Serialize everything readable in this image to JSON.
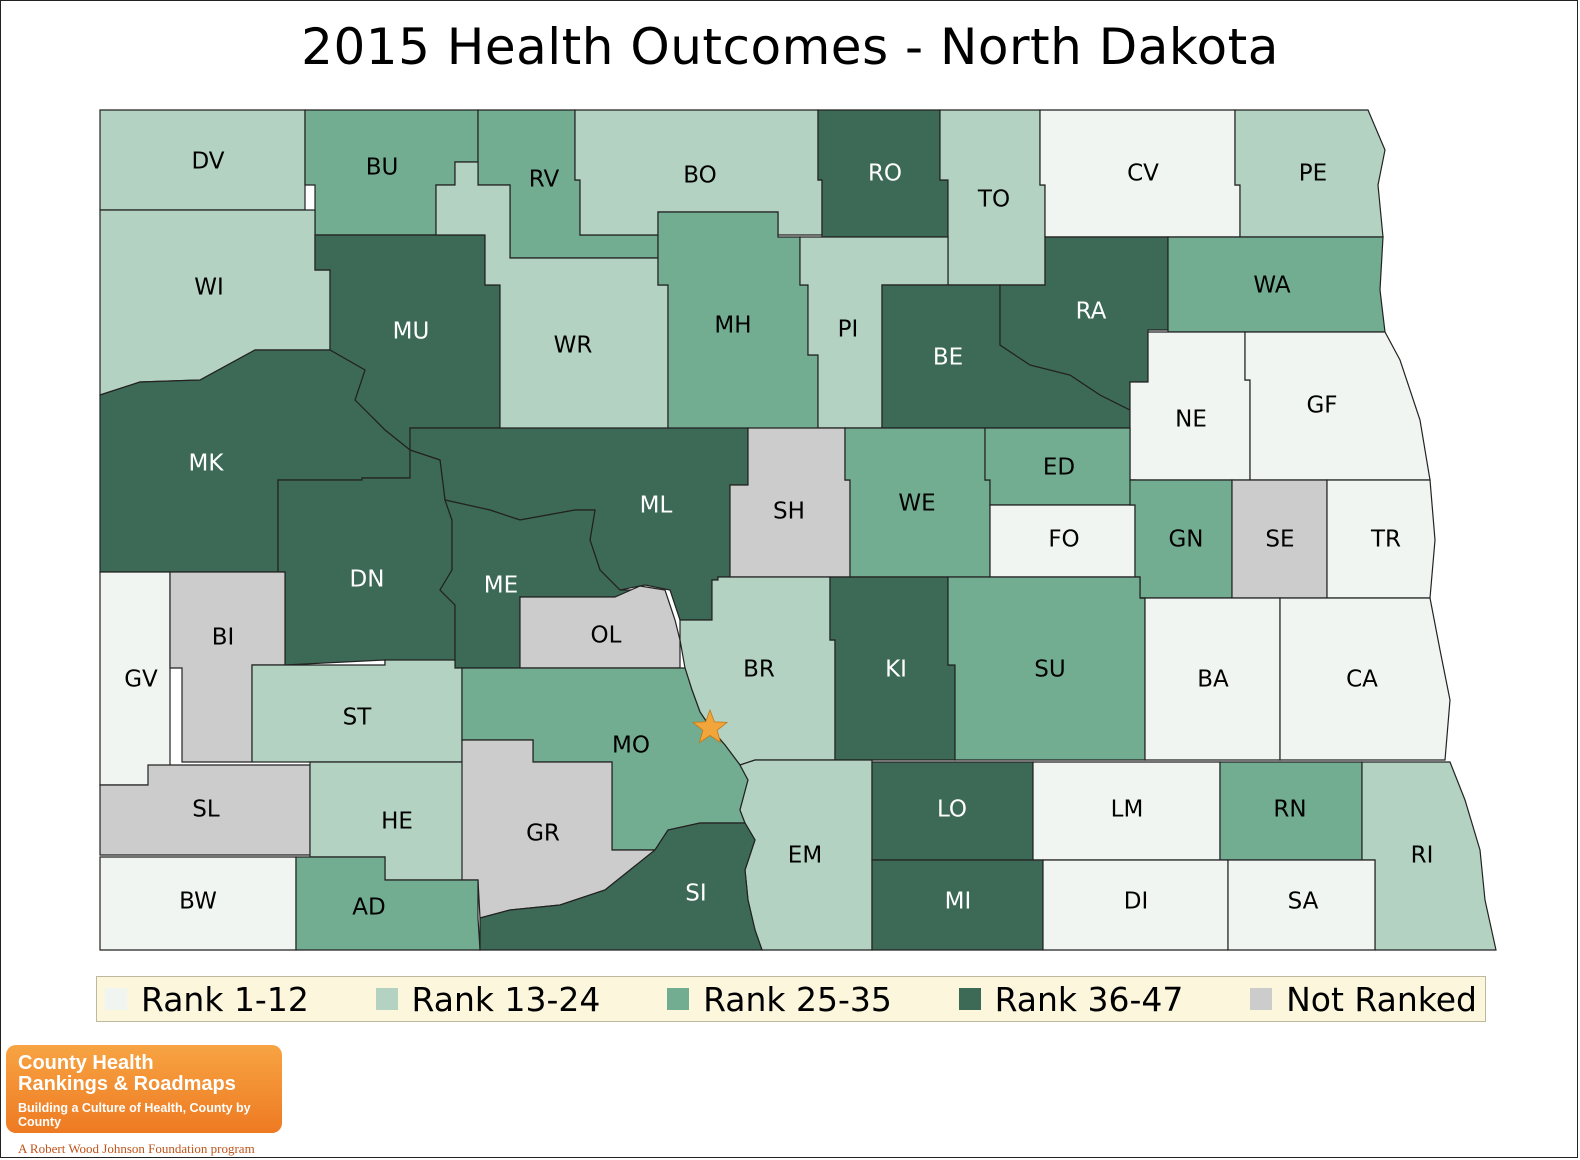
{
  "title": "2015 Health Outcomes - North Dakota",
  "colors": {
    "rank_1_12": "#f1f5f2",
    "rank_13_24": "#b3d2c2",
    "rank_25_35": "#72ad92",
    "rank_36_47": "#3c6a56",
    "not_ranked": "#cccccc",
    "star": "#f2a53a"
  },
  "legend": [
    {
      "label": "Rank 1-12",
      "category": "rank_1_12"
    },
    {
      "label": "Rank 13-24",
      "category": "rank_13_24"
    },
    {
      "label": "Rank 25-35",
      "category": "rank_25_35"
    },
    {
      "label": "Rank 36-47",
      "category": "rank_36_47"
    },
    {
      "label": "Not Ranked",
      "category": "not_ranked"
    }
  ],
  "counties": [
    {
      "code": "DV",
      "category": "rank_13_24"
    },
    {
      "code": "BU",
      "category": "rank_25_35"
    },
    {
      "code": "RV",
      "category": "rank_25_35"
    },
    {
      "code": "BO",
      "category": "rank_13_24"
    },
    {
      "code": "RO",
      "category": "rank_36_47"
    },
    {
      "code": "TO",
      "category": "rank_13_24"
    },
    {
      "code": "CV",
      "category": "rank_1_12"
    },
    {
      "code": "PE",
      "category": "rank_13_24"
    },
    {
      "code": "WI",
      "category": "rank_13_24"
    },
    {
      "code": "MU",
      "category": "rank_36_47"
    },
    {
      "code": "WR",
      "category": "rank_13_24"
    },
    {
      "code": "MH",
      "category": "rank_25_35"
    },
    {
      "code": "PI",
      "category": "rank_13_24"
    },
    {
      "code": "BE",
      "category": "rank_36_47"
    },
    {
      "code": "RA",
      "category": "rank_36_47"
    },
    {
      "code": "WA",
      "category": "rank_25_35"
    },
    {
      "code": "NE",
      "category": "rank_1_12"
    },
    {
      "code": "GF",
      "category": "rank_1_12"
    },
    {
      "code": "MK",
      "category": "rank_36_47"
    },
    {
      "code": "ML",
      "category": "rank_36_47"
    },
    {
      "code": "SH",
      "category": "not_ranked"
    },
    {
      "code": "WE",
      "category": "rank_25_35"
    },
    {
      "code": "ED",
      "category": "rank_25_35"
    },
    {
      "code": "FO",
      "category": "rank_1_12"
    },
    {
      "code": "GN",
      "category": "rank_25_35"
    },
    {
      "code": "SE",
      "category": "not_ranked"
    },
    {
      "code": "TR",
      "category": "rank_1_12"
    },
    {
      "code": "DN",
      "category": "rank_36_47"
    },
    {
      "code": "ME",
      "category": "rank_36_47"
    },
    {
      "code": "OL",
      "category": "not_ranked"
    },
    {
      "code": "BR",
      "category": "rank_13_24"
    },
    {
      "code": "KI",
      "category": "rank_36_47"
    },
    {
      "code": "SU",
      "category": "rank_25_35"
    },
    {
      "code": "BA",
      "category": "rank_1_12"
    },
    {
      "code": "CA",
      "category": "rank_1_12"
    },
    {
      "code": "GV",
      "category": "rank_1_12"
    },
    {
      "code": "BI",
      "category": "not_ranked"
    },
    {
      "code": "ST",
      "category": "rank_13_24"
    },
    {
      "code": "MO",
      "category": "rank_25_35"
    },
    {
      "code": "SL",
      "category": "not_ranked"
    },
    {
      "code": "HE",
      "category": "rank_13_24"
    },
    {
      "code": "GR",
      "category": "not_ranked"
    },
    {
      "code": "EM",
      "category": "rank_13_24"
    },
    {
      "code": "LO",
      "category": "rank_36_47"
    },
    {
      "code": "LM",
      "category": "rank_1_12"
    },
    {
      "code": "RN",
      "category": "rank_25_35"
    },
    {
      "code": "RI",
      "category": "rank_13_24"
    },
    {
      "code": "BW",
      "category": "rank_1_12"
    },
    {
      "code": "AD",
      "category": "rank_25_35"
    },
    {
      "code": "SI",
      "category": "rank_36_47"
    },
    {
      "code": "MI",
      "category": "rank_36_47"
    },
    {
      "code": "DI",
      "category": "rank_1_12"
    },
    {
      "code": "SA",
      "category": "rank_1_12"
    }
  ],
  "logo": {
    "line1": "County Health",
    "line2": "Rankings & Roadmaps",
    "tagline": "Building a Culture of Health, County by County",
    "sub": "A Robert Wood Johnson Foundation program"
  }
}
